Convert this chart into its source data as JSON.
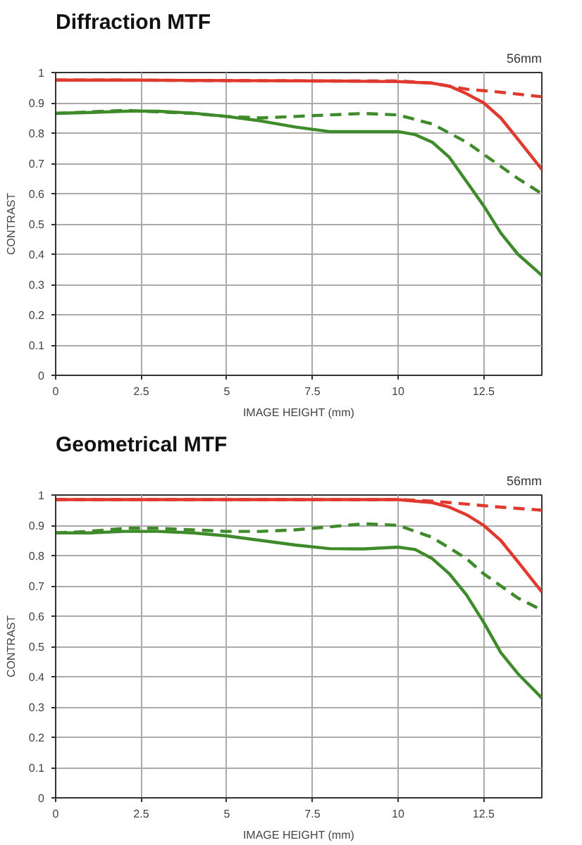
{
  "chart_data": [
    {
      "type": "line",
      "title": "Diffraction MTF",
      "xlabel": "IMAGE HEIGHT (mm)",
      "ylabel": "CONTRAST",
      "annotations": [
        "56mm"
      ],
      "xlim": [
        0,
        14.2
      ],
      "ylim": [
        0,
        1
      ],
      "xticks": [
        0,
        2.5,
        5,
        7.5,
        10,
        12.5
      ],
      "yticks": [
        0,
        0.1,
        0.2,
        0.3,
        0.4,
        0.5,
        0.6,
        0.7,
        0.8,
        0.9,
        1
      ],
      "grid": true,
      "series": [
        {
          "color": "#e03a2f",
          "line_style": "solid",
          "x": [
            0,
            2,
            4,
            6,
            8,
            10,
            11,
            11.5,
            12,
            12.5,
            13,
            13.5,
            14.2
          ],
          "values": [
            0.975,
            0.975,
            0.974,
            0.973,
            0.972,
            0.97,
            0.965,
            0.955,
            0.93,
            0.9,
            0.85,
            0.78,
            0.68
          ]
        },
        {
          "color": "#e03a2f",
          "line_style": "dashed",
          "x": [
            0,
            2,
            4,
            6,
            8,
            10,
            11,
            11.5,
            12,
            13,
            14.2
          ],
          "values": [
            0.975,
            0.975,
            0.974,
            0.973,
            0.972,
            0.972,
            0.965,
            0.955,
            0.945,
            0.935,
            0.92
          ]
        },
        {
          "color": "#3f8a2a",
          "line_style": "solid",
          "x": [
            0,
            1,
            2,
            2.5,
            3,
            4,
            5,
            6,
            7,
            8,
            9,
            10,
            10.5,
            11,
            11.5,
            12,
            12.5,
            13,
            13.5,
            14.2
          ],
          "values": [
            0.865,
            0.868,
            0.872,
            0.873,
            0.872,
            0.866,
            0.855,
            0.84,
            0.82,
            0.805,
            0.805,
            0.805,
            0.795,
            0.77,
            0.72,
            0.64,
            0.56,
            0.47,
            0.4,
            0.33
          ]
        },
        {
          "color": "#3f8a2a",
          "line_style": "dashed",
          "x": [
            0,
            1,
            2,
            3,
            4,
            5,
            6,
            7,
            8,
            9,
            10,
            11,
            12,
            12.5,
            13,
            13.5,
            14.2
          ],
          "values": [
            0.865,
            0.87,
            0.875,
            0.87,
            0.865,
            0.855,
            0.85,
            0.855,
            0.86,
            0.865,
            0.86,
            0.83,
            0.77,
            0.73,
            0.69,
            0.65,
            0.6
          ]
        }
      ]
    },
    {
      "type": "line",
      "title": "Geometrical MTF",
      "xlabel": "IMAGE HEIGHT (mm)",
      "ylabel": "CONTRAST",
      "annotations": [
        "56mm"
      ],
      "xlim": [
        0,
        14.2
      ],
      "ylim": [
        0,
        1
      ],
      "xticks": [
        0,
        2.5,
        5,
        7.5,
        10,
        12.5
      ],
      "yticks": [
        0,
        0.1,
        0.2,
        0.3,
        0.4,
        0.5,
        0.6,
        0.7,
        0.8,
        0.9,
        1
      ],
      "grid": true,
      "series": [
        {
          "color": "#e03a2f",
          "line_style": "solid",
          "x": [
            0,
            2,
            4,
            6,
            8,
            10,
            11,
            11.5,
            12,
            12.5,
            13,
            13.5,
            14.2
          ],
          "values": [
            0.985,
            0.985,
            0.985,
            0.985,
            0.985,
            0.985,
            0.975,
            0.96,
            0.935,
            0.9,
            0.85,
            0.78,
            0.68
          ]
        },
        {
          "color": "#e03a2f",
          "line_style": "dashed",
          "x": [
            0,
            2,
            4,
            6,
            8,
            10,
            11,
            12,
            13,
            14.2
          ],
          "values": [
            0.985,
            0.985,
            0.985,
            0.985,
            0.985,
            0.985,
            0.98,
            0.97,
            0.96,
            0.95
          ]
        },
        {
          "color": "#3f8a2a",
          "line_style": "solid",
          "x": [
            0,
            1,
            2,
            3,
            4,
            5,
            6,
            7,
            8,
            9,
            10,
            10.5,
            11,
            11.5,
            12,
            12.5,
            13,
            13.5,
            14.2
          ],
          "values": [
            0.875,
            0.875,
            0.88,
            0.88,
            0.875,
            0.865,
            0.85,
            0.835,
            0.823,
            0.822,
            0.828,
            0.82,
            0.79,
            0.74,
            0.67,
            0.58,
            0.48,
            0.41,
            0.33
          ]
        },
        {
          "color": "#3f8a2a",
          "line_style": "dashed",
          "x": [
            0,
            1,
            2,
            3,
            4,
            5,
            6,
            7,
            8,
            9,
            10,
            11,
            12,
            12.5,
            13,
            13.5,
            14.2
          ],
          "values": [
            0.875,
            0.88,
            0.89,
            0.89,
            0.885,
            0.88,
            0.88,
            0.885,
            0.895,
            0.905,
            0.9,
            0.86,
            0.79,
            0.74,
            0.7,
            0.66,
            0.62
          ]
        }
      ]
    }
  ]
}
